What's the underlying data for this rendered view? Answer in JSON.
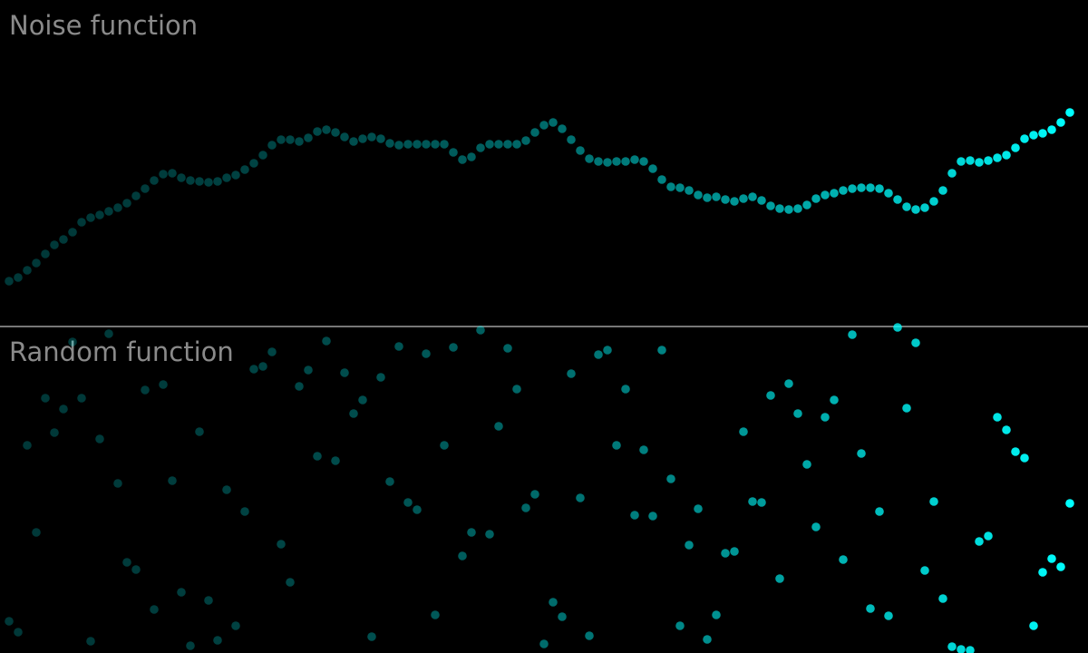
{
  "chart_data": [
    {
      "type": "scatter",
      "title": "Noise function",
      "color": "#00ffff",
      "ylim": [
        0,
        360
      ],
      "values": [
        50,
        54,
        62,
        70,
        80,
        90,
        96,
        104,
        115,
        120,
        123,
        127,
        131,
        136,
        144,
        152,
        161,
        168,
        169,
        164,
        161,
        160,
        159,
        160,
        164,
        167,
        173,
        180,
        189,
        200,
        206,
        206,
        204,
        208,
        215,
        217,
        214,
        209,
        204,
        207,
        209,
        207,
        202,
        200,
        201,
        201,
        201,
        201,
        201,
        192,
        184,
        187,
        197,
        201,
        201,
        201,
        201,
        205,
        214,
        222,
        225,
        218,
        206,
        194,
        185,
        182,
        181,
        182,
        182,
        184,
        182,
        174,
        162,
        154,
        153,
        150,
        145,
        142,
        143,
        140,
        138,
        141,
        143,
        139,
        133,
        130,
        129,
        130,
        134,
        141,
        145,
        147,
        150,
        152,
        153,
        153,
        152,
        147,
        140,
        132,
        129,
        131,
        138,
        150,
        169,
        182,
        183,
        181,
        183,
        186,
        189,
        197,
        207,
        211,
        213,
        217,
        225,
        236
      ]
    },
    {
      "type": "scatter",
      "title": "Random function",
      "color": "#00ffff",
      "ylim": [
        0,
        360
      ],
      "values": [
        35,
        23,
        229,
        133,
        281,
        243,
        269,
        343,
        281,
        13,
        236,
        352,
        187,
        100,
        92,
        290,
        48,
        296,
        190,
        67,
        8,
        244,
        58,
        14,
        180,
        30,
        156,
        313,
        316,
        332,
        120,
        78,
        294,
        312,
        217,
        344,
        212,
        309,
        264,
        279,
        18,
        304,
        189,
        338,
        166,
        158,
        330,
        42,
        229,
        337,
        107,
        133,
        356,
        131,
        250,
        336,
        291,
        160,
        175,
        10,
        56,
        40,
        308,
        171,
        19,
        329,
        334,
        229,
        291,
        152,
        224,
        151,
        334,
        192,
        30,
        119,
        159,
        15,
        42,
        110,
        112,
        244,
        167,
        166,
        284,
        82,
        297,
        264,
        208,
        139,
        260,
        279,
        103,
        351,
        220,
        49,
        156,
        41,
        359,
        270,
        342,
        91,
        167,
        60,
        7,
        4,
        3,
        123,
        129,
        260,
        246,
        222,
        215,
        30,
        89,
        104,
        95,
        165
      ]
    }
  ]
}
